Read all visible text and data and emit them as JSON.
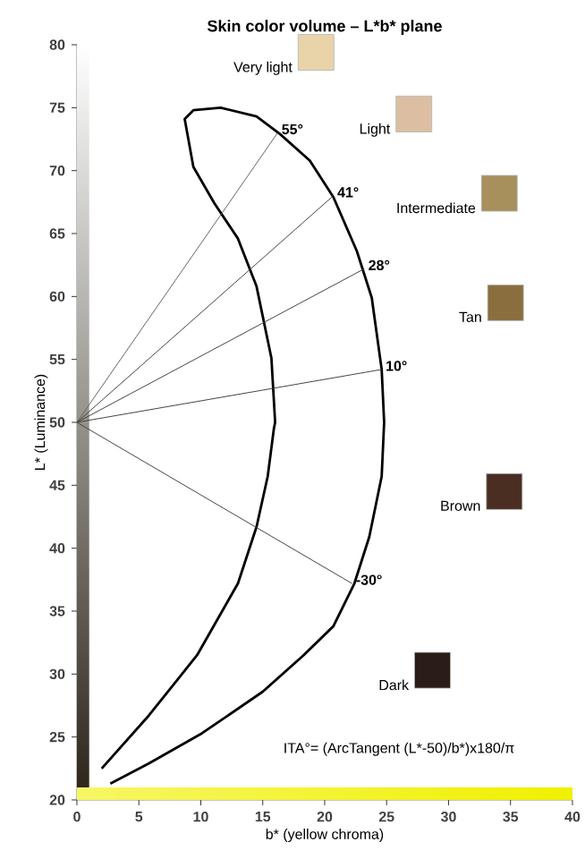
{
  "chart_data": {
    "type": "line",
    "title": "Skin color volume – L*b* plane",
    "xlabel": "b* (yellow chroma)",
    "ylabel": "L* (Luminance)",
    "xlim": [
      0,
      40
    ],
    "ylim": [
      20,
      80
    ],
    "xticks": [
      0,
      5,
      10,
      15,
      20,
      25,
      30,
      35,
      40
    ],
    "yticks": [
      20,
      25,
      30,
      35,
      40,
      45,
      50,
      55,
      60,
      65,
      70,
      75,
      80
    ],
    "grid": false,
    "series": [
      {
        "color": "#000000",
        "x": [
          2.0,
          5.8,
          9.7,
          13.0,
          14.5,
          15.4,
          15.9,
          16.0,
          15.7,
          14.5,
          13.0,
          11.1,
          9.4,
          8.7,
          9.4,
          11.6,
          14.5,
          16.4,
          18.8,
          20.7,
          22.6,
          23.8,
          24.6,
          24.8,
          24.6,
          23.6,
          22.4,
          20.7,
          18.3,
          15.0,
          10.1,
          5.8,
          2.7
        ],
        "values": [
          22.5,
          26.7,
          31.5,
          37.2,
          41.7,
          45.7,
          49.5,
          50.0,
          55.1,
          60.8,
          64.6,
          67.4,
          70.3,
          74.1,
          74.8,
          75.0,
          74.3,
          72.9,
          70.8,
          67.9,
          63.6,
          59.9,
          54.2,
          50.0,
          45.7,
          40.9,
          37.2,
          33.8,
          31.5,
          28.6,
          25.3,
          22.9,
          21.3
        ]
      },
      {
        "name": "55°",
        "color": "#666666",
        "x": [
          0,
          16.2
        ],
        "values": [
          50,
          73.0
        ]
      },
      {
        "name": "41°",
        "color": "#444444",
        "x": [
          0,
          20.7
        ],
        "values": [
          50,
          68.0
        ]
      },
      {
        "name": "28°",
        "color": "#444444",
        "x": [
          0,
          23.2
        ],
        "values": [
          50,
          62.2
        ]
      },
      {
        "name": "10°",
        "color": "#444444",
        "x": [
          0,
          24.6
        ],
        "values": [
          50,
          54.2
        ]
      },
      {
        "name": "-30°",
        "color": "#444444",
        "x": [
          0,
          22.2
        ],
        "values": [
          50,
          37.2
        ]
      },
      {
        "type": "scatter",
        "marker": "square",
        "name": "Very light",
        "color": "#e8d4a8",
        "x": [
          19.3
        ],
        "values": [
          79.4
        ]
      },
      {
        "type": "scatter",
        "marker": "square",
        "name": "Light",
        "color": "#dcbfa3",
        "x": [
          27.2
        ],
        "values": [
          74.5
        ]
      },
      {
        "type": "scatter",
        "marker": "square",
        "name": "Intermediate",
        "color": "#a8905c",
        "x": [
          34.1
        ],
        "values": [
          68.2
        ]
      },
      {
        "type": "scatter",
        "marker": "square",
        "name": "Tan",
        "color": "#8a6e3e",
        "x": [
          34.6
        ],
        "values": [
          59.5
        ]
      },
      {
        "type": "scatter",
        "marker": "square",
        "name": "Brown",
        "color": "#4a2e22",
        "x": [
          34.5
        ],
        "values": [
          44.5
        ]
      },
      {
        "type": "scatter",
        "marker": "square",
        "name": "Dark",
        "color": "#2a1d18",
        "x": [
          28.7
        ],
        "values": [
          30.3
        ]
      }
    ],
    "bands": [
      {
        "axis": "x",
        "from": 0,
        "to": 1,
        "color": "#2a2418"
      },
      {
        "axis": "y",
        "from": 20,
        "to": 21,
        "color": "#f0f000"
      }
    ],
    "annotations": [
      "ITA°= (ArcTangent (L*-50)/b*)x180/π"
    ]
  }
}
